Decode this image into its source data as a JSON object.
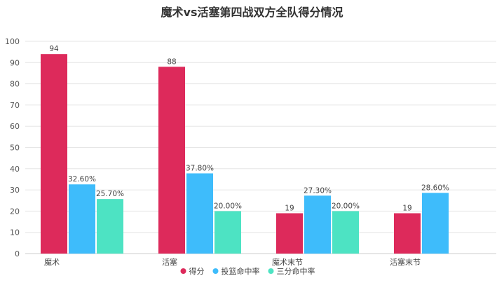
{
  "chart_data": {
    "type": "bar",
    "title": "魔术vs活塞第四战双方全队得分情况",
    "xlabel": "",
    "ylabel": "",
    "ylim": [
      0,
      100
    ],
    "yticks": [
      0,
      10,
      20,
      30,
      40,
      50,
      60,
      70,
      80,
      90,
      100
    ],
    "grid": true,
    "legend_position": "bottom",
    "categories": [
      "魔术",
      "活塞",
      "魔术末节",
      "活塞末节"
    ],
    "series": [
      {
        "name": "得分",
        "color": "#dd2a5b",
        "values": [
          94,
          88,
          19,
          19
        ],
        "labels": [
          "94",
          "88",
          "19",
          "19"
        ]
      },
      {
        "name": "投篮命中率",
        "color": "#3ebcfb",
        "values": [
          32.6,
          37.8,
          27.3,
          28.6
        ],
        "labels": [
          "32.60%",
          "37.80%",
          "27.30%",
          "28.60%"
        ]
      },
      {
        "name": "三分命中率",
        "color": "#4de3c3",
        "values": [
          25.7,
          20.0,
          20.0,
          null
        ],
        "labels": [
          "25.70%",
          "20.00%",
          "20.00%",
          ""
        ]
      }
    ]
  }
}
